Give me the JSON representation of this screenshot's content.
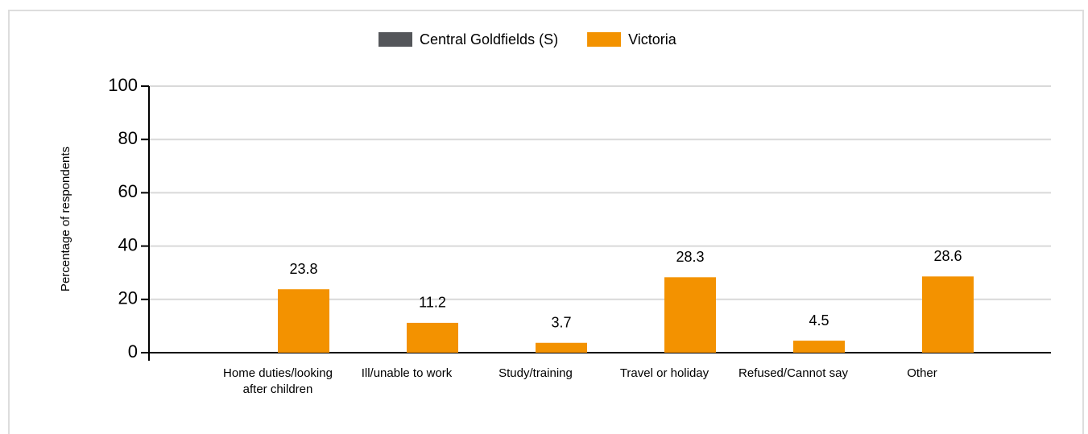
{
  "chart_data": {
    "type": "bar",
    "y_label": "Percentage of respondents",
    "categories": [
      "Home duties/looking after children",
      "Ill/unable to work",
      "Study/training",
      "Travel or holiday",
      "Refused/Cannot say",
      "Other"
    ],
    "series": [
      {
        "name": "Central Goldfields (S)",
        "color": "#54565a",
        "values": [
          null,
          null,
          null,
          null,
          null,
          null
        ]
      },
      {
        "name": "Victoria",
        "color": "#f39200",
        "values": [
          23.8,
          11.2,
          3.7,
          28.3,
          4.5,
          28.6
        ]
      }
    ],
    "ylim": [
      0,
      100
    ],
    "yticks": [
      0,
      20,
      40,
      60,
      80,
      100
    ],
    "grid": true,
    "legend": "top"
  }
}
